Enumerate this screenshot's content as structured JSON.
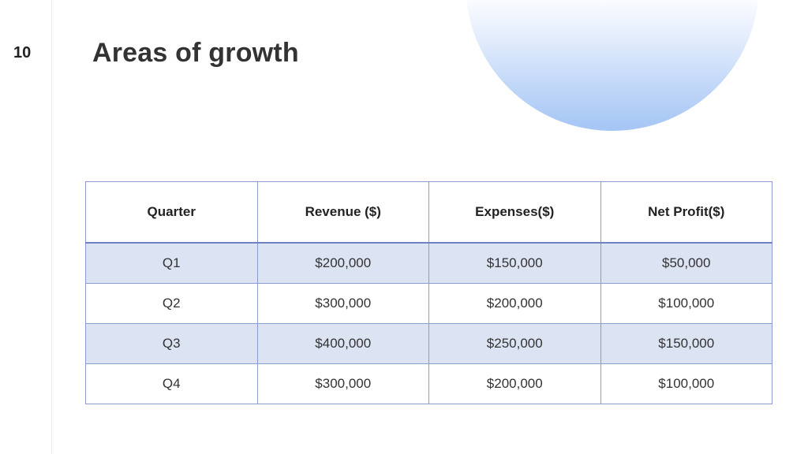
{
  "slide": {
    "number": "10",
    "title": "Areas of growth"
  },
  "table": {
    "headers": [
      "Quarter",
      "Revenue ($)",
      "Expenses($)",
      "Net Profit($)"
    ],
    "rows": [
      [
        "Q1",
        "$200,000",
        "$150,000",
        "$50,000"
      ],
      [
        "Q2",
        "$300,000",
        "$200,000",
        "$100,000"
      ],
      [
        "Q3",
        "$400,000",
        "$250,000",
        "$150,000"
      ],
      [
        "Q4",
        "$300,000",
        "$200,000",
        "$100,000"
      ]
    ]
  },
  "colors": {
    "banded_row": "#dce3f2",
    "border": "#8a9bcd",
    "accent_circle": "#a5c5f5"
  }
}
